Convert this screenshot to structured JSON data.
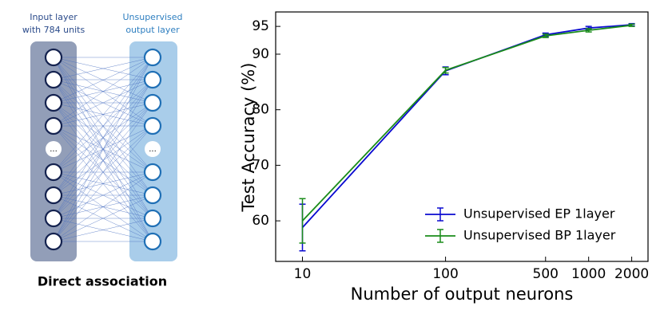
{
  "diagram": {
    "input_label": [
      "Input layer",
      "with 784 units"
    ],
    "output_label": [
      "Unsupervised",
      "output layer"
    ],
    "ellipsis": "...",
    "caption": "Direct association"
  },
  "chart_data": {
    "type": "line",
    "xlabel": "Number of output neurons",
    "ylabel": "Test Accuracy (%)",
    "x": [
      10,
      100,
      500,
      1000,
      2000
    ],
    "xscale": "log",
    "xlim": [
      6.5,
      2600
    ],
    "xticks": [
      10,
      100,
      500,
      1000,
      2000
    ],
    "ylim": [
      52.7,
      97.6
    ],
    "yticks": [
      60,
      70,
      80,
      90,
      95
    ],
    "legend": "lower right",
    "series": [
      {
        "name": "Unsupervised EP 1layer",
        "color": "#0a0ad0",
        "values": [
          58.8,
          87.0,
          93.5,
          94.7,
          95.3
        ],
        "errors": [
          4.2,
          0.7,
          0.3,
          0.3,
          0.2
        ]
      },
      {
        "name": "Unsupervised BP 1layer",
        "color": "#1a8c1a",
        "values": [
          60.0,
          87.1,
          93.3,
          94.3,
          95.2
        ],
        "errors": [
          4.0,
          0.5,
          0.3,
          0.3,
          0.2
        ]
      }
    ]
  }
}
